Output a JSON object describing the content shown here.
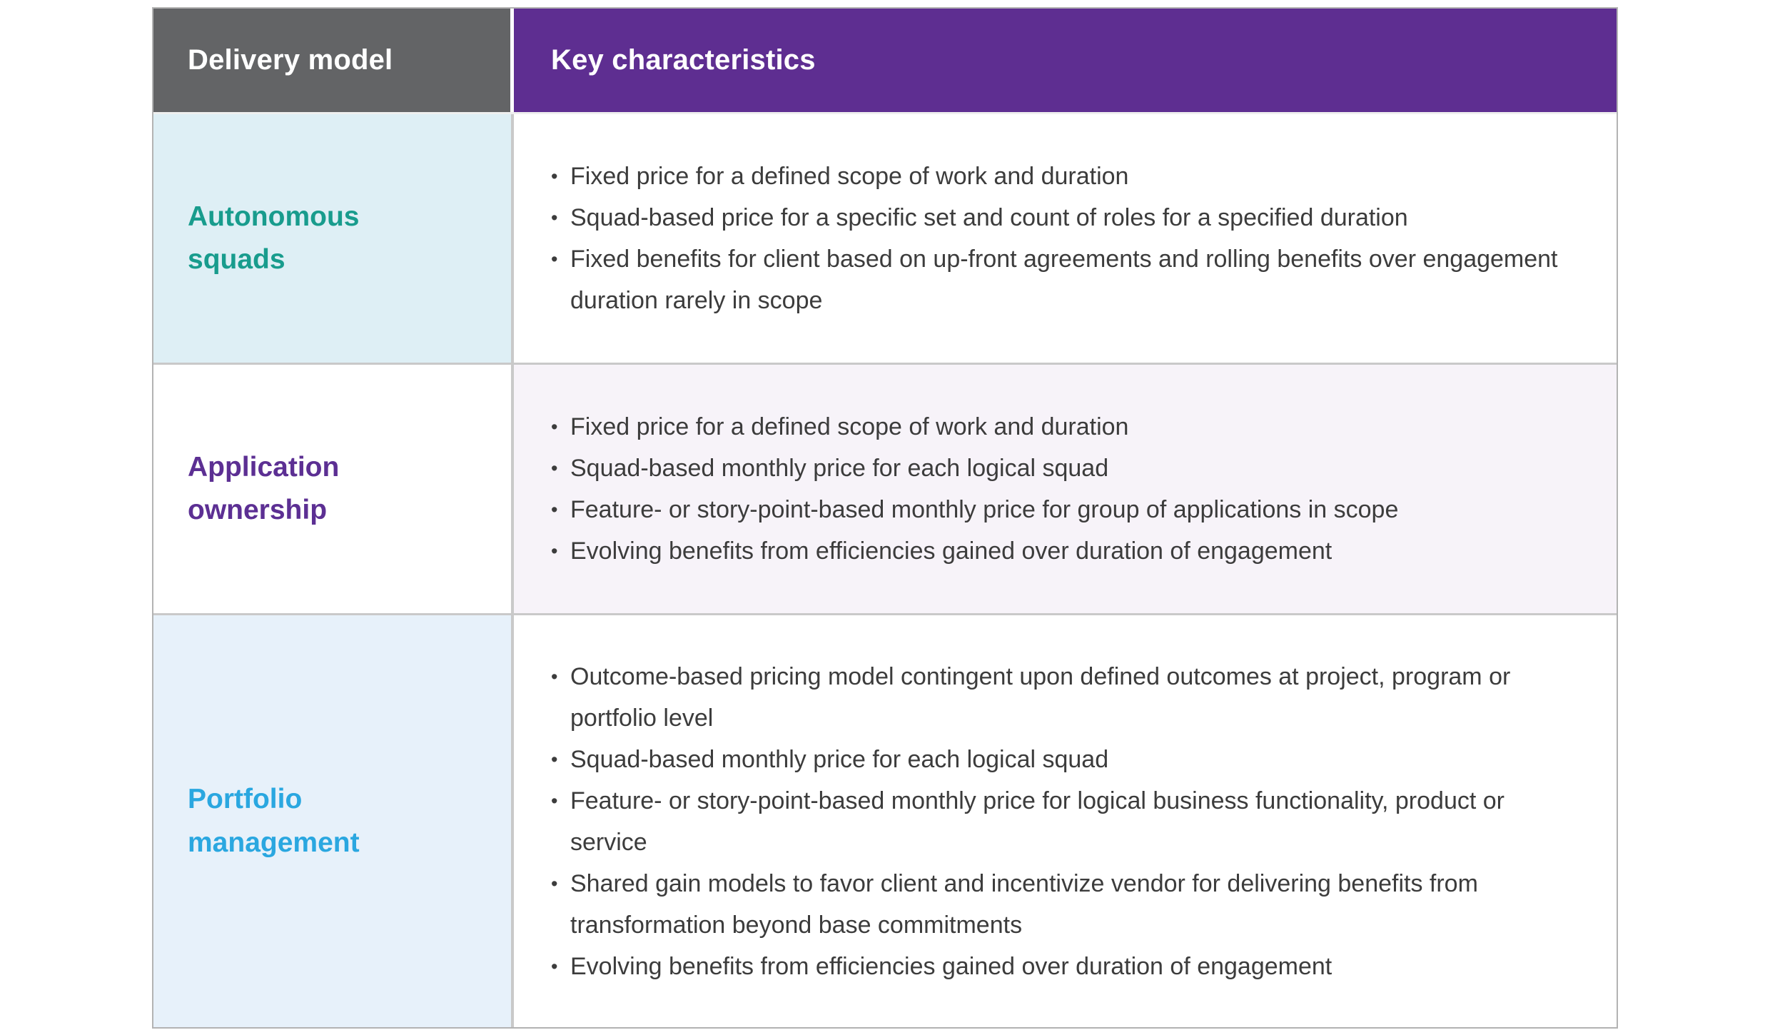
{
  "colors": {
    "header_left_bg": "#636466",
    "header_right_bg": "#5e2e91",
    "header_text": "#ffffff",
    "row1_left_bg": "#deeff5",
    "row1_label": "#189c8d",
    "row2_left_bg": "#ffffff",
    "row2_label": "#5c2f93",
    "row2_right_bg": "#f7f3f9",
    "row3_left_bg": "#e7f1fa",
    "row3_label": "#2aa7e0",
    "body_text": "#3c3c3c",
    "inner_border": "#c9c9c9",
    "outer_border": "#b3b3b3"
  },
  "table": {
    "bullet_char": "•",
    "header": {
      "col1": "Delivery model",
      "col2": "Key characteristics"
    },
    "rows": [
      {
        "label": "Autonomous squads",
        "bullets": [
          "Fixed price for a defined scope of work and duration",
          "Squad-based price for a specific set and count of roles for a specified duration",
          "Fixed benefits for client based on up-front agreements and rolling benefits over engagement duration rarely in scope"
        ]
      },
      {
        "label": "Application ownership",
        "bullets": [
          "Fixed price for a defined scope of work and duration",
          "Squad-based monthly price for each logical squad",
          "Feature- or story-point-based monthly price for group of applications in scope",
          "Evolving benefits from efficiencies gained over duration of engagement"
        ]
      },
      {
        "label": "Portfolio management",
        "bullets": [
          "Outcome-based pricing model contingent upon defined outcomes at project, program or portfolio level",
          "Squad-based monthly price for each logical squad",
          "Feature- or story-point-based monthly price for logical business functionality, product or service",
          "Shared gain models to favor client and incentivize vendor for delivering benefits from transformation beyond base commitments",
          "Evolving benefits from efficiencies gained over duration of engagement"
        ]
      }
    ]
  }
}
